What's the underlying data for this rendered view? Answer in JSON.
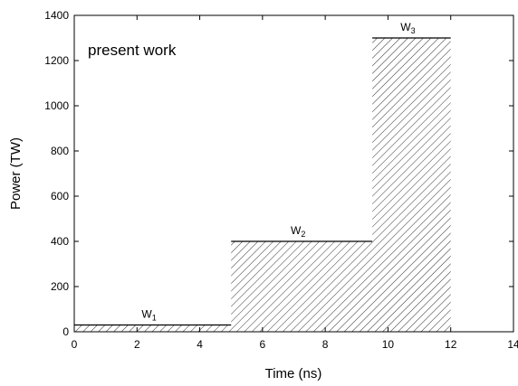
{
  "chart_data": {
    "type": "histogram",
    "x_label": "Time (ns)",
    "y_label": "Power (TW)",
    "annotation": "present work",
    "bins": [
      0,
      5,
      9.5,
      12
    ],
    "values": [
      30,
      400,
      1300
    ],
    "segment_labels": [
      {
        "base": "W",
        "sub": "1"
      },
      {
        "base": "W",
        "sub": "2"
      },
      {
        "base": "W",
        "sub": "3"
      }
    ],
    "color": "#000000",
    "hatch": true,
    "xlim": [
      0,
      14
    ],
    "xticks": [
      0,
      2,
      4,
      6,
      8,
      10,
      12,
      14
    ],
    "ylim": [
      0,
      1400
    ],
    "yticks": [
      0,
      200,
      400,
      600,
      800,
      1000,
      1200,
      1400
    ],
    "grid": false
  }
}
